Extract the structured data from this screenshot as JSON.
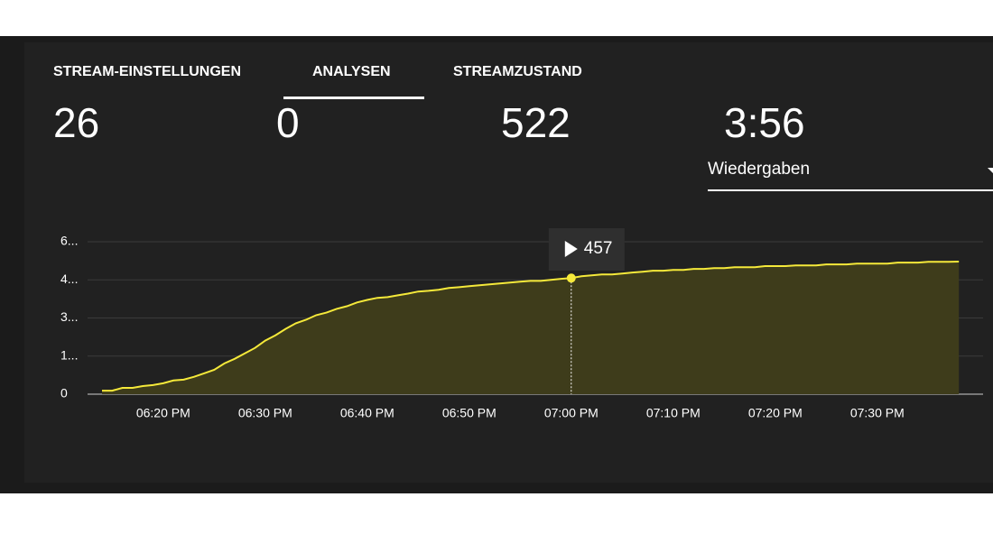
{
  "tabs": [
    "STREAM-EINSTELLUNGEN",
    "ANALYSEN",
    "STREAMZUSTAND"
  ],
  "active_tab": 1,
  "stats": [
    "26",
    "0",
    "522",
    "3:56"
  ],
  "dropdown": "Wiedergaben",
  "chart_data": {
    "type": "area",
    "color": "#f5e93a",
    "fill": "#3e3c1b",
    "grid": true,
    "x": [
      "06:14 PM",
      "06:15 PM",
      "06:16 PM",
      "06:17 PM",
      "06:18 PM",
      "06:19 PM",
      "06:20 PM",
      "06:21 PM",
      "06:22 PM",
      "06:23 PM",
      "06:24 PM",
      "06:25 PM",
      "06:26 PM",
      "06:27 PM",
      "06:28 PM",
      "06:29 PM",
      "06:30 PM",
      "06:31 PM",
      "06:32 PM",
      "06:33 PM",
      "06:34 PM",
      "06:35 PM",
      "06:36 PM",
      "06:37 PM",
      "06:38 PM",
      "06:39 PM",
      "06:40 PM",
      "06:41 PM",
      "06:42 PM",
      "06:43 PM",
      "06:44 PM",
      "06:45 PM",
      "06:46 PM",
      "06:47 PM",
      "06:48 PM",
      "06:49 PM",
      "06:50 PM",
      "06:51 PM",
      "06:52 PM",
      "06:53 PM",
      "06:54 PM",
      "06:55 PM",
      "06:56 PM",
      "06:57 PM",
      "06:58 PM",
      "06:59 PM",
      "07:00 PM",
      "07:01 PM",
      "07:02 PM",
      "07:03 PM",
      "07:04 PM",
      "07:05 PM",
      "07:06 PM",
      "07:07 PM",
      "07:08 PM",
      "07:09 PM",
      "07:10 PM",
      "07:11 PM",
      "07:12 PM",
      "07:13 PM",
      "07:14 PM",
      "07:15 PM",
      "07:16 PM",
      "07:17 PM",
      "07:18 PM",
      "07:19 PM",
      "07:20 PM",
      "07:21 PM",
      "07:22 PM",
      "07:23 PM",
      "07:24 PM",
      "07:25 PM",
      "07:26 PM",
      "07:27 PM",
      "07:28 PM",
      "07:29 PM",
      "07:30 PM",
      "07:31 PM",
      "07:32 PM",
      "07:33 PM",
      "07:34 PM",
      "07:35 PM",
      "07:36 PM",
      "07:37 PM",
      "07:38 PM"
    ],
    "values": [
      14,
      14,
      25,
      25,
      32,
      36,
      43,
      54,
      57,
      68,
      82,
      96,
      121,
      139,
      161,
      182,
      211,
      232,
      257,
      279,
      293,
      311,
      321,
      336,
      346,
      361,
      371,
      379,
      382,
      389,
      396,
      404,
      407,
      411,
      418,
      421,
      425,
      429,
      432,
      436,
      439,
      443,
      446,
      446,
      450,
      454,
      457,
      464,
      468,
      471,
      471,
      475,
      479,
      482,
      486,
      486,
      489,
      489,
      493,
      493,
      496,
      496,
      500,
      500,
      500,
      504,
      504,
      504,
      507,
      507,
      507,
      511,
      511,
      511,
      514,
      514,
      514,
      514,
      518,
      518,
      518,
      521,
      521,
      521,
      522
    ],
    "highlight": 46,
    "ylim": [
      0,
      600
    ],
    "yticks": [
      0,
      {
        "value": 150,
        "label": "1..."
      },
      {
        "value": 300,
        "label": "3..."
      },
      {
        "value": 450,
        "label": "4..."
      },
      {
        "value": 600,
        "label": "6..."
      }
    ]
  }
}
